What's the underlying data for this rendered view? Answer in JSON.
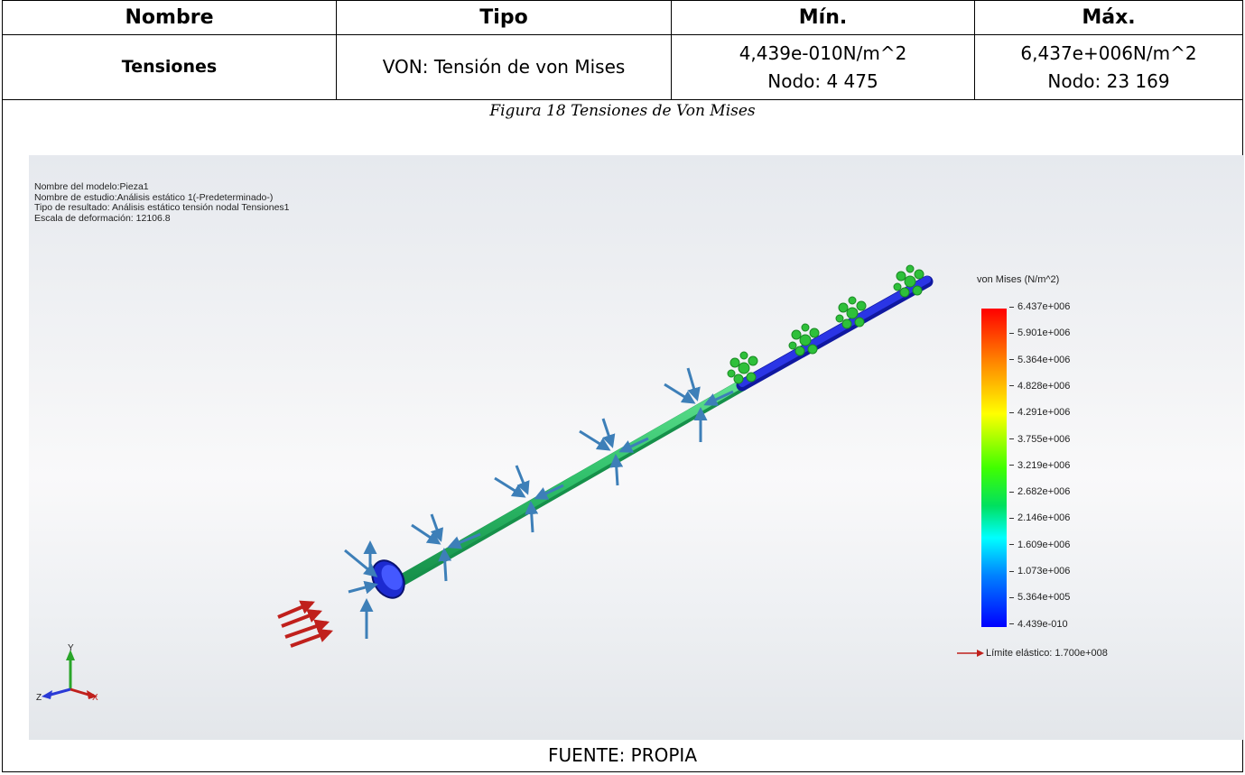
{
  "table": {
    "headers": [
      "Nombre",
      "Tipo",
      "Mín.",
      "Máx."
    ],
    "row": {
      "name": "Tensiones",
      "type": "VON: Tensión de von Mises",
      "min_value": "4,439e-010N/m^2",
      "min_node": "Nodo: 4 475",
      "max_value": "6,437e+006N/m^2",
      "max_node": "Nodo: 23 169"
    }
  },
  "figure": {
    "caption": "Figura 18 Tensiones de Von Mises",
    "source": "FUENTE: PROPIA",
    "model_info": [
      "Nombre del modelo:Pieza1",
      "Nombre de estudio:Análisis estático 1(-Predeterminado-)",
      "Tipo de resultado: Análisis estático tensión nodal Tensiones1",
      "Escala de deformación: 12106.8"
    ],
    "legend": {
      "title": "von Mises (N/m^2)",
      "ticks": [
        "6.437e+006",
        "5.901e+006",
        "5.364e+006",
        "4.828e+006",
        "4.291e+006",
        "3.755e+006",
        "3.219e+006",
        "2.682e+006",
        "2.146e+006",
        "1.609e+006",
        "1.073e+006",
        "5.364e+005",
        "4.439e-010"
      ],
      "yield_label": "Límite elástico: 1.700e+008"
    },
    "triad": {
      "y": "Y",
      "z": "Z",
      "x": "X"
    },
    "colors": {
      "shaft": "#2fbf6a",
      "shaft_end": "#1a22d6",
      "load_arrow": "#3d7fb8",
      "fixture": "#2ec03a",
      "force": "#c0201c"
    }
  }
}
